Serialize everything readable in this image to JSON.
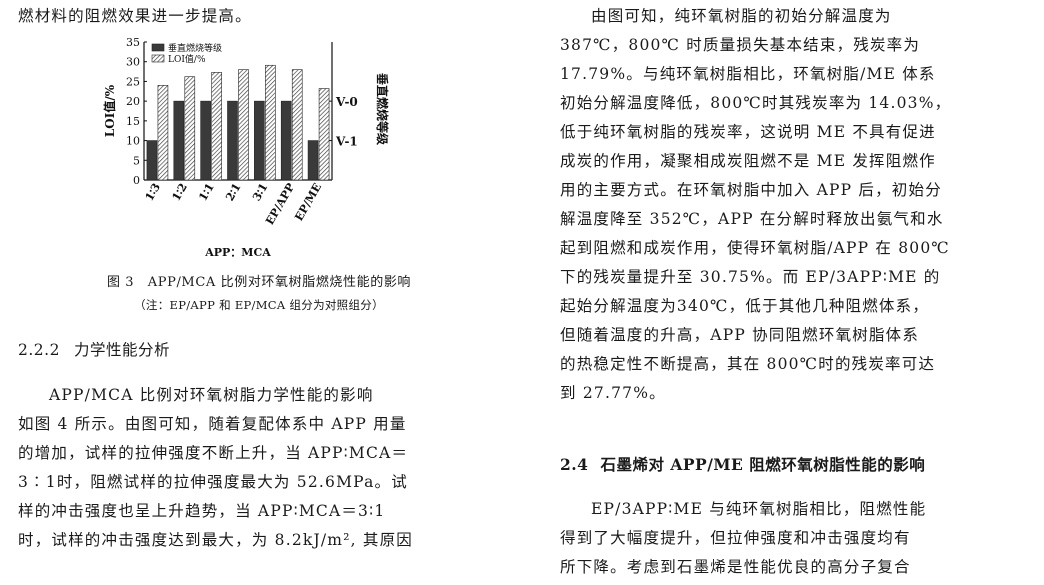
{
  "left": {
    "top_line": "燃材料的阻燃效果进一步提高。",
    "figure_caption": "图 3　APP/MCA 比例对环氧树脂燃烧性能的影响",
    "figure_note": "（注：EP/APP 和 EP/MCA 组分为对照组分）",
    "section_number": "2.2.2",
    "section_title": "力学性能分析",
    "paragraph_lines": [
      "APP/MCA 比例对环氧树脂力学性能的影响",
      "如图 4 所示。由图可知，随着复配体系中 APP 用量",
      "的增加，试样的拉伸强度不断上升，当 APP∶MCA＝",
      "3∶1时，阻燃试样的拉伸强度最大为 52.6MPa。试",
      "样的冲击强度也呈上升趋势，当 APP∶MCA＝3∶1",
      "时，试样的冲击强度达到最大，为 8.2kJ/m², 其原因"
    ]
  },
  "right": {
    "paragraph1_lines": [
      "由图可知，纯环氧树脂的初始分解温度为",
      "387℃，800℃ 时质量损失基本结束，残炭率为",
      "17.79%。与纯环氧树脂相比，环氧树脂/ME 体系",
      "初始分解温度降低，800℃时其残炭率为 14.03%，",
      "低于纯环氧树脂的残炭率，这说明 ME 不具有促进",
      "成炭的作用，凝聚相成炭阻燃不是 ME 发挥阻燃作",
      "用的主要方式。在环氧树脂中加入 APP 后，初始分",
      "解温度降至 352℃，APP 在分解时释放出氨气和水",
      "起到阻燃和成炭作用，使得环氧树脂/APP 在 800℃",
      "下的残炭量提升至 30.75%。而 EP/3APP∶ME 的",
      "起始分解温度为340℃，低于其他几种阻燃体系，",
      "但随着温度的升高，APP 协同阻燃环氧树脂体系",
      "的热稳定性不断提高，其在 800℃时的残炭率可达",
      "到 27.77%。"
    ],
    "section_number": "2.4",
    "section_title": "石墨烯对 APP/ME 阻燃环氧树脂性能的影响",
    "paragraph2_lines": [
      "EP/3APP∶ME 与纯环氧树脂相比，阻燃性能",
      "得到了大幅度提升，但拉伸强度和冲击强度均有",
      "所下降。考虑到石墨烯是性能优良的高分子复合"
    ]
  },
  "chart_data": {
    "type": "bar",
    "categories": [
      "1∶3",
      "1∶2",
      "1∶1",
      "2∶1",
      "3∶1",
      "EP/APP",
      "EP/ME"
    ],
    "series": [
      {
        "name": "垂直燃烧等级",
        "values": [
          10,
          20,
          20,
          20,
          20,
          20,
          10
        ],
        "pattern": "dark"
      },
      {
        "name": "LOI值/%",
        "values": [
          24,
          26.2,
          27.3,
          28,
          29.1,
          28,
          23.2
        ],
        "pattern": "hatched"
      }
    ],
    "xlabel": "APP：MCA",
    "ylabel": "LOI值/%",
    "ylabel_right": "垂直燃烧等级",
    "ylim": [
      0,
      35
    ],
    "yticks": [
      0,
      5,
      10,
      15,
      20,
      25,
      30,
      35
    ],
    "right_ticks": [
      {
        "value": 20,
        "label": "V-0"
      },
      {
        "value": 10,
        "label": "V-1"
      }
    ],
    "legend_position": "top-left",
    "grid": false
  }
}
